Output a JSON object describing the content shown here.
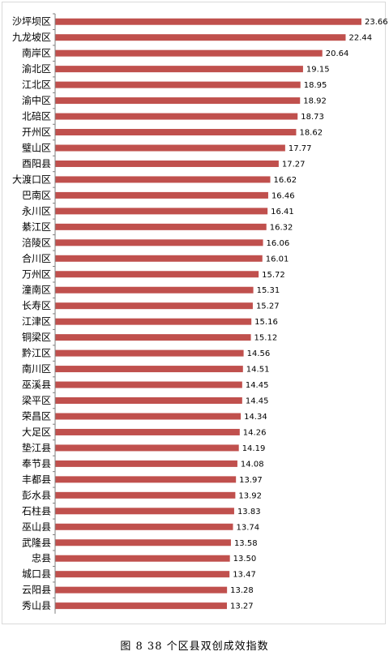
{
  "caption": "图 8 38 个区县双创成效指数",
  "colors": {
    "bar": "#c0504d",
    "axis": "#7f7f7f",
    "frame": "#d9d9d9"
  },
  "chart_data": {
    "type": "bar",
    "orientation": "horizontal",
    "categories": [
      "沙坪坝区",
      "九龙坡区",
      "南岸区",
      "渝北区",
      "江北区",
      "渝中区",
      "北碚区",
      "开州区",
      "璧山区",
      "酉阳县",
      "大渡口区",
      "巴南区",
      "永川区",
      "綦江区",
      "涪陵区",
      "合川区",
      "万州区",
      "潼南区",
      "长寿区",
      "江津区",
      "铜梁区",
      "黔江区",
      "南川区",
      "巫溪县",
      "梁平区",
      "荣昌区",
      "大足区",
      "垫江县",
      "奉节县",
      "丰都县",
      "彭水县",
      "石柱县",
      "巫山县",
      "武隆县",
      "忠县",
      "城口县",
      "云阳县",
      "秀山县"
    ],
    "values": [
      23.66,
      22.44,
      20.64,
      19.15,
      18.95,
      18.92,
      18.73,
      18.62,
      17.77,
      17.27,
      16.62,
      16.46,
      16.41,
      16.32,
      16.06,
      16.01,
      15.72,
      15.31,
      15.27,
      15.16,
      15.12,
      14.56,
      14.51,
      14.45,
      14.45,
      14.34,
      14.26,
      14.19,
      14.08,
      13.97,
      13.92,
      13.83,
      13.74,
      13.58,
      13.5,
      13.47,
      13.28,
      13.27
    ],
    "value_labels": [
      "23.66",
      "22.44",
      "20.64",
      "19.15",
      "18.95",
      "18.92",
      "18.73",
      "18.62",
      "17.77",
      "17.27",
      "16.62",
      "16.46",
      "16.41",
      "16.32",
      "16.06",
      "16.01",
      "15.72",
      "15.31",
      "15.27",
      "15.16",
      "15.12",
      "14.56",
      "14.51",
      "14.45",
      "14.45",
      "14.34",
      "14.26",
      "14.19",
      "14.08",
      "13.97",
      "13.92",
      "13.83",
      "13.74",
      "13.58",
      "13.50",
      "13.47",
      "13.28",
      "13.27"
    ],
    "xlim": [
      0,
      24
    ],
    "grid": false,
    "legend": "none",
    "title": "",
    "xlabel": "",
    "ylabel": ""
  }
}
